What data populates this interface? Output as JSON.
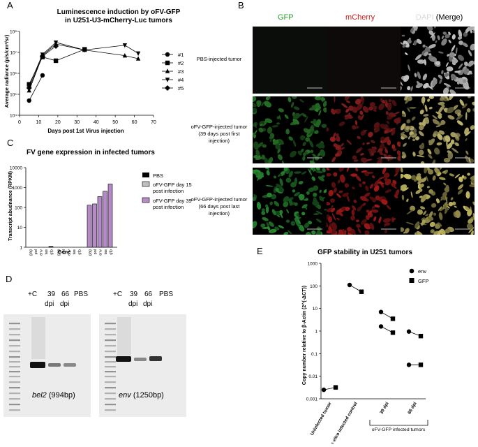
{
  "panel_letters": {
    "a": "A",
    "b": "B",
    "c": "C",
    "d": "D",
    "e": "E"
  },
  "panel_a": {
    "title_line1": "Luminescence induction by oFV-GFP",
    "title_line2": "in U251-U3-mCherry-Luc tumors",
    "ylabel": "Average radiance (p/s/cm²/sr)",
    "xlabel": "Days post 1st Virus injection",
    "xticks": [
      "0",
      "10",
      "20",
      "30",
      "40",
      "50",
      "60",
      "70"
    ],
    "yticks": [
      "10⁴",
      "10⁵",
      "10⁶",
      "10⁷",
      "10⁸"
    ],
    "legend": [
      "#1",
      "#2",
      "#3",
      "#4",
      "#5"
    ]
  },
  "panel_b": {
    "col_headers": {
      "gfp": "GFP",
      "mcherry": "mCherry",
      "dapi": "DAPI",
      "merge": "(Merge)"
    },
    "row1": "PBS-injected tumor",
    "row2_l1": "oFV-GFP-injected tumor",
    "row2_l2": "(39 days post first",
    "row2_l3": "injection)",
    "row3_l1": "oFV-GFP-injected tumor",
    "row3_l2": "(66 days post last",
    "row3_l3": "injection)"
  },
  "panel_c": {
    "title": "FV gene expression in infected tumors",
    "ylabel": "Transcript abudnance (RPKM)",
    "xlabel": "Gene",
    "yticks": [
      "1",
      "10",
      "100",
      "1000",
      "10000"
    ],
    "genes": [
      "gag",
      "pol",
      "env",
      "tas",
      "gfp"
    ],
    "legend": [
      "PBS",
      "oFV-GFP day 15 post infection",
      "oFV-GFP day 39 post infection"
    ],
    "legend_lines": {
      "l2a": "oFV-GFP day 15",
      "l2b": "post infection",
      "l3a": "oFV-GFP day 39",
      "l3b": "post infection"
    },
    "colors": {
      "pbs": "#000000",
      "d15": "#bfbfbf",
      "d39": "#b58ac7"
    }
  },
  "panel_d": {
    "gel1_lanes": [
      "+C",
      "39",
      "66",
      "PBS"
    ],
    "gel1_dpi": [
      "dpi",
      "dpi"
    ],
    "gel2_lanes": [
      "+C",
      "39",
      "66",
      "PBS"
    ],
    "gel2_dpi": [
      "dpi",
      "dpi"
    ],
    "gel1_caption_gene": "bel2",
    "gel1_caption_size": "(994bp)",
    "gel2_caption_gene": "env",
    "gel2_caption_size": "(1250bp)"
  },
  "panel_e": {
    "title": "GFP stability in U251 tumors",
    "ylabel": "Copy number relative to β-Actin (2^(-ΔCT))",
    "yticks": [
      "0.001",
      "0.01",
      "0.1",
      "1",
      "10",
      "100",
      "1000"
    ],
    "xcats": [
      "Uninfected tumor",
      "in vitro infected control",
      "39 dpi",
      "66 dpi"
    ],
    "bracket_label": "oFV-GFP infected tumors",
    "legend": [
      "env",
      "GFP"
    ]
  },
  "chart_data": [
    {
      "type": "line",
      "title": "Luminescence induction by oFV-GFP in U251-U3-mCherry-Luc tumors",
      "xlabel": "Days post 1st Virus injection",
      "ylabel": "Average radiance (p/s/cm²/sr)",
      "xlim": [
        0,
        70
      ],
      "ylim": [
        10000,
        100000000
      ],
      "yscale": "log",
      "series": [
        {
          "name": "#1",
          "x": [
            5,
            12
          ],
          "y": [
            50000,
            800000
          ]
        },
        {
          "name": "#2",
          "x": [
            5,
            12,
            19,
            34
          ],
          "y": [
            300000,
            6000000,
            4000000,
            14000000
          ]
        },
        {
          "name": "#3",
          "x": [
            5,
            12,
            19,
            34,
            55,
            62
          ],
          "y": [
            150000,
            7000000,
            25000000,
            13000000,
            7000000,
            5000000
          ]
        },
        {
          "name": "#4",
          "x": [
            5,
            12,
            19,
            34,
            55,
            62
          ],
          "y": [
            250000,
            8000000,
            30000000,
            13000000,
            22000000,
            9000000
          ]
        },
        {
          "name": "#5",
          "x": [
            5,
            12,
            19
          ],
          "y": [
            200000,
            6500000,
            20000000
          ]
        }
      ]
    },
    {
      "type": "bar",
      "title": "FV gene expression in infected tumors",
      "xlabel": "Gene",
      "ylabel": "Transcript abudnance (RPKM)",
      "yscale": "log",
      "ylim": [
        1,
        10000
      ],
      "categories": [
        "gag",
        "pol",
        "env",
        "tas",
        "gfp"
      ],
      "series": [
        {
          "name": "PBS",
          "values": [
            1,
            1,
            1,
            1,
            1.1
          ]
        },
        {
          "name": "oFV-GFP day 15 post infection",
          "values": [
            1,
            1,
            1,
            1,
            1
          ]
        },
        {
          "name": "oFV-GFP day 39 post infection",
          "values": [
            130,
            150,
            350,
            650,
            1500
          ]
        }
      ]
    },
    {
      "type": "scatter",
      "title": "GFP stability in U251 tumors",
      "ylabel": "Copy number relative to β-Actin (2^(-ΔCT))",
      "yscale": "log",
      "ylim": [
        0.001,
        1000
      ],
      "categories": [
        "Uninfected tumor",
        "in vitro infected control",
        "39 dpi",
        "66 dpi"
      ],
      "pairs": [
        {
          "category": "Uninfected tumor",
          "env": 0.0025,
          "GFP": 0.0032
        },
        {
          "category": "in vitro infected control",
          "env": 110,
          "GFP": 55
        },
        {
          "category": "39 dpi",
          "env": 7,
          "GFP": 3.5
        },
        {
          "category": "39 dpi",
          "env": 1.6,
          "GFP": 0.85
        },
        {
          "category": "66 dpi",
          "env": 0.95,
          "GFP": 0.6
        },
        {
          "category": "66 dpi",
          "env": 0.032,
          "GFP": 0.032
        }
      ]
    }
  ]
}
